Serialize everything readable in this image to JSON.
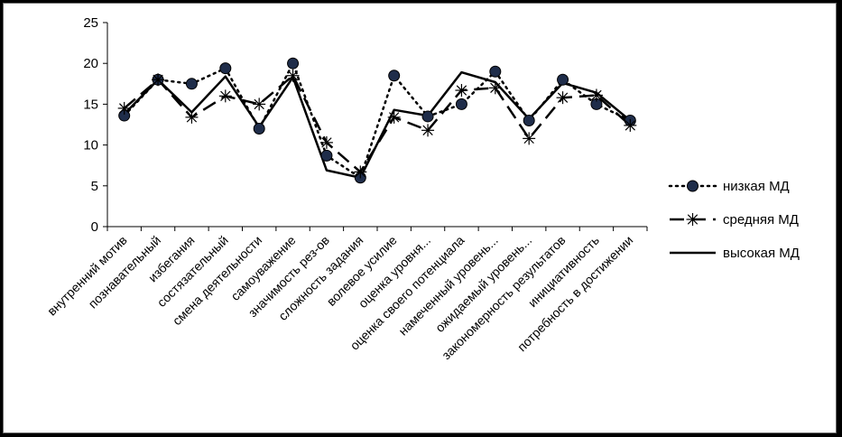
{
  "chart_data": {
    "type": "line",
    "title": "",
    "xlabel": "",
    "ylabel": "",
    "ylim": [
      0,
      25
    ],
    "yticks": [
      0,
      5,
      10,
      15,
      20,
      25
    ],
    "grid": false,
    "legend_position": "right",
    "categories": [
      "внутренний мотив",
      "познавательный",
      "избегания",
      "состязательный",
      "смена деятельности",
      "самоуважение",
      "значимость рез-ов",
      "сложность задания",
      "волевое усилие",
      "оценка уровня...",
      "оценка своего потенциала",
      "намеченный уровень...",
      "ожидаемый уровень...",
      "закономерность результатов",
      "инициативность",
      "потребность в достижении"
    ],
    "series": [
      {
        "name": "низкая МД",
        "style": "dotted-circle",
        "values": [
          13.6,
          18.0,
          17.5,
          19.4,
          12.0,
          20.0,
          8.7,
          6.0,
          18.5,
          13.5,
          15.0,
          19.0,
          13.0,
          18.0,
          15.0,
          13.0
        ]
      },
      {
        "name": "средняя МД",
        "style": "dashed-star",
        "values": [
          14.5,
          18.0,
          13.4,
          16.0,
          15.0,
          18.5,
          10.3,
          6.7,
          13.4,
          11.8,
          16.7,
          17.0,
          10.8,
          15.8,
          16.1,
          12.4
        ]
      },
      {
        "name": "высокая МД",
        "style": "solid",
        "values": [
          13.8,
          18.0,
          14.0,
          18.4,
          12.2,
          18.3,
          6.9,
          6.0,
          14.3,
          13.6,
          18.9,
          17.7,
          13.2,
          17.6,
          16.4,
          13.0
        ]
      }
    ]
  }
}
